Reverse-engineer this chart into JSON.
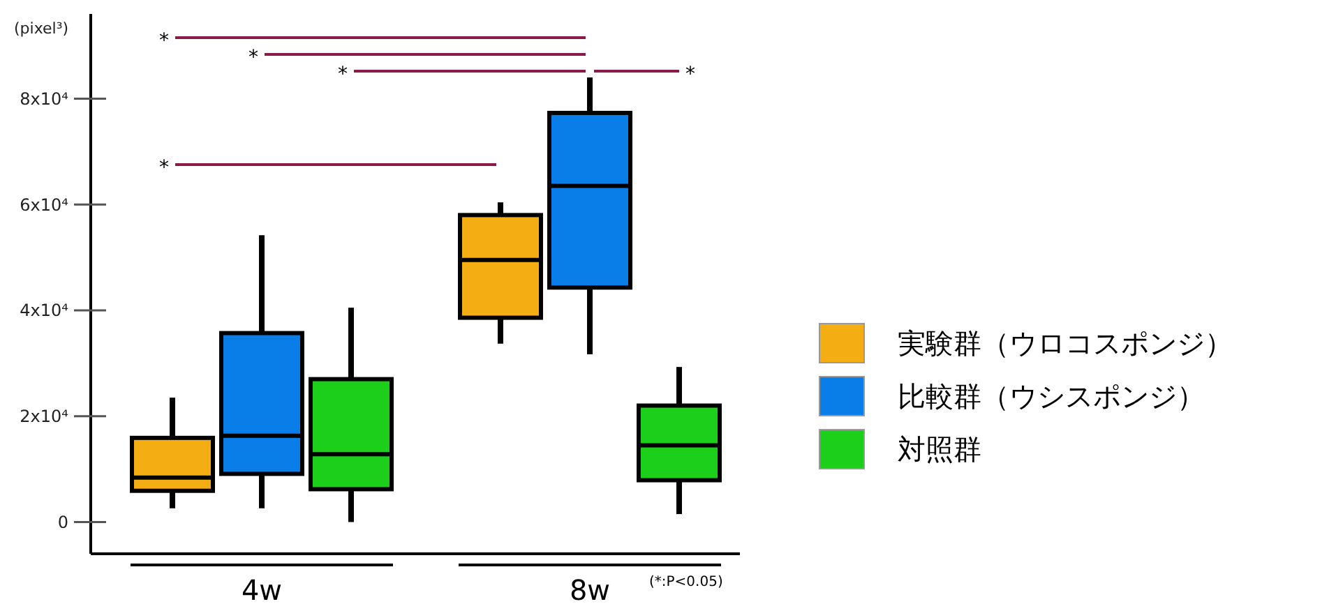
{
  "chart_data": {
    "type": "box",
    "ylabel": "(pixel³)",
    "categories": [
      "4w",
      "8w"
    ],
    "ylim": [
      -6000,
      96000
    ],
    "yticks": [
      {
        "value": 0,
        "label": "0"
      },
      {
        "value": 20000,
        "label": "2x10⁴"
      },
      {
        "value": 40000,
        "label": "4x10⁴"
      },
      {
        "value": 60000,
        "label": "6x10⁴"
      },
      {
        "value": 80000,
        "label": "8x10⁴"
      }
    ],
    "series": [
      {
        "name": "実験群（ウロコスポンジ）",
        "color": "#f5ad14",
        "boxes": [
          {
            "low": 2600,
            "q1": 5900,
            "median": 8400,
            "q3": 15900,
            "high": 23500
          },
          {
            "low": 33700,
            "q1": 38600,
            "median": 49500,
            "q3": 58000,
            "high": 60400
          }
        ]
      },
      {
        "name": "比較群（ウシスポンジ）",
        "color": "#0a7ee8",
        "boxes": [
          {
            "low": 2600,
            "q1": 9100,
            "median": 16300,
            "q3": 35700,
            "high": 54200
          },
          {
            "low": 31700,
            "q1": 44300,
            "median": 63500,
            "q3": 77300,
            "high": 84000
          }
        ]
      },
      {
        "name": "対照群",
        "color": "#1ccf1a",
        "boxes": [
          {
            "low": 0,
            "q1": 6200,
            "median": 12800,
            "q3": 27000,
            "high": 40500
          },
          {
            "low": 1500,
            "q1": 7900,
            "median": 14500,
            "q3": 22000,
            "high": 29300
          }
        ]
      }
    ],
    "annotations": [
      "*",
      "*",
      "*",
      "*",
      "*",
      "(*:P<0.05)"
    ],
    "legend": "right",
    "grid": false
  }
}
